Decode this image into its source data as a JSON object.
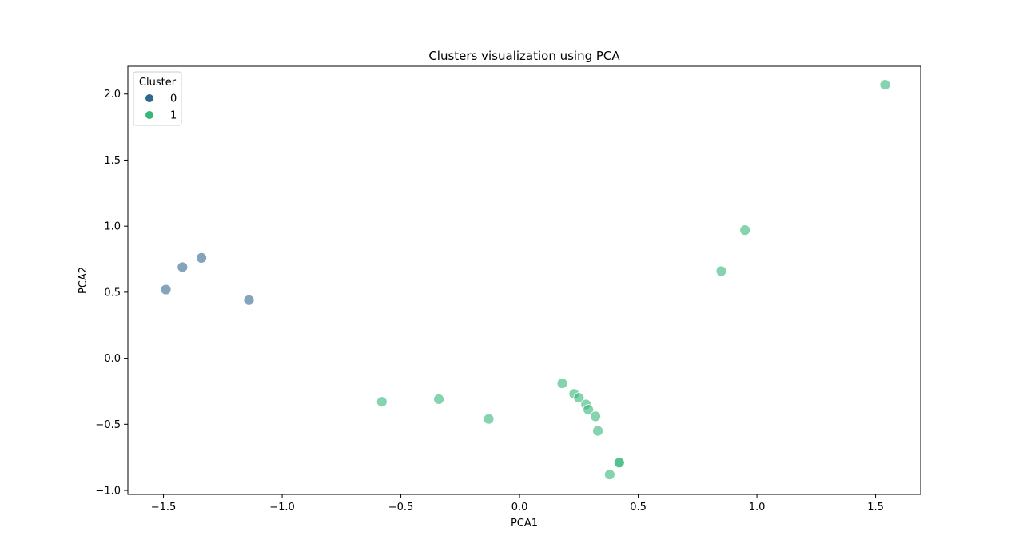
{
  "chart_data": {
    "type": "scatter",
    "title": "Clusters visualization using PCA",
    "xlabel": "PCA1",
    "ylabel": "PCA2",
    "xlim": [
      -1.65,
      1.69
    ],
    "ylim": [
      -1.03,
      2.21
    ],
    "xticks": [
      -1.5,
      -1.0,
      -0.5,
      0.0,
      0.5,
      1.0,
      1.5
    ],
    "xtick_labels": [
      "−1.5",
      "−1.0",
      "−0.5",
      "0.0",
      "0.5",
      "1.0",
      "1.5"
    ],
    "yticks": [
      -1.0,
      -0.5,
      0.0,
      0.5,
      1.0,
      1.5,
      2.0
    ],
    "ytick_labels": [
      "−1.0",
      "−0.5",
      "0.0",
      "0.5",
      "1.0",
      "1.5",
      "2.0"
    ],
    "grid": false,
    "legend": {
      "title": "Cluster",
      "placement": "top-left"
    },
    "series": [
      {
        "name": "0",
        "color": "#30678d",
        "points": [
          {
            "x": -1.49,
            "y": 0.52
          },
          {
            "x": -1.42,
            "y": 0.69
          },
          {
            "x": -1.34,
            "y": 0.76
          },
          {
            "x": -1.14,
            "y": 0.44
          }
        ]
      },
      {
        "name": "1",
        "color": "#35b779",
        "points": [
          {
            "x": 1.54,
            "y": 2.07
          },
          {
            "x": 0.95,
            "y": 0.97
          },
          {
            "x": 0.85,
            "y": 0.66
          },
          {
            "x": -0.58,
            "y": -0.33
          },
          {
            "x": -0.34,
            "y": -0.31
          },
          {
            "x": -0.13,
            "y": -0.46
          },
          {
            "x": 0.18,
            "y": -0.19
          },
          {
            "x": 0.23,
            "y": -0.27
          },
          {
            "x": 0.25,
            "y": -0.3
          },
          {
            "x": 0.28,
            "y": -0.35
          },
          {
            "x": 0.29,
            "y": -0.39
          },
          {
            "x": 0.32,
            "y": -0.44
          },
          {
            "x": 0.33,
            "y": -0.55
          },
          {
            "x": 0.42,
            "y": -0.79
          },
          {
            "x": 0.42,
            "y": -0.79
          },
          {
            "x": 0.38,
            "y": -0.88
          }
        ]
      }
    ]
  }
}
